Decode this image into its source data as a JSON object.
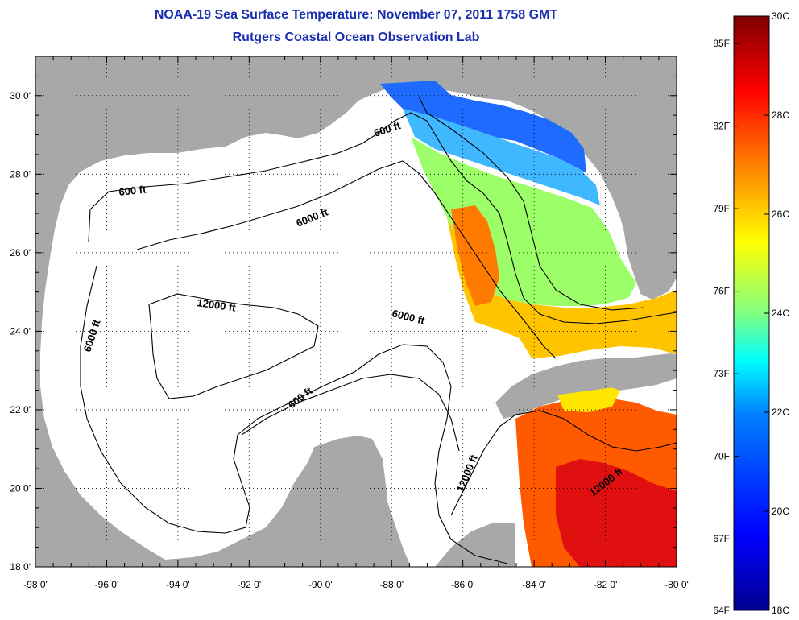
{
  "title": "NOAA-19 Sea Surface Temperature:  November 07, 2011 1758 GMT",
  "subtitle": "Rutgers Coastal Ocean Observation Lab",
  "map": {
    "lon_range": [
      -98,
      -80
    ],
    "lat_range": [
      18,
      31
    ],
    "x_ticks": [
      "-98 0'",
      "-96 0'",
      "-94 0'",
      "-92 0'",
      "-90 0'",
      "-88 0'",
      "-86 0'",
      "-84 0'",
      "-82 0'",
      "-80 0'"
    ],
    "y_ticks": [
      "18 0'",
      "20 0'",
      "22 0'",
      "24 0'",
      "26 0'",
      "28 0'",
      "30 0'"
    ],
    "grid": "dotted",
    "land_color": "#a8a8a8",
    "ocean_color": "#ffffff",
    "contour_labels": [
      "600 ft",
      "600 ft",
      "6000 ft",
      "12000 ft",
      "6000 ft",
      "6000 ft",
      "600 ft",
      "12000 ft",
      "12000 ft"
    ]
  },
  "colorbar": {
    "fahrenheit_labels": [
      "85F",
      "82F",
      "79F",
      "76F",
      "73F",
      "70F",
      "67F",
      "64F"
    ],
    "celsius_labels": [
      "30C",
      "28C",
      "26C",
      "24C",
      "22C",
      "20C",
      "18C"
    ],
    "range_c": [
      18,
      30
    ],
    "colors": [
      "#00008f",
      "#0000ff",
      "#0080ff",
      "#00ffff",
      "#80ff80",
      "#ffff00",
      "#ff8000",
      "#ff0000",
      "#800000"
    ]
  }
}
